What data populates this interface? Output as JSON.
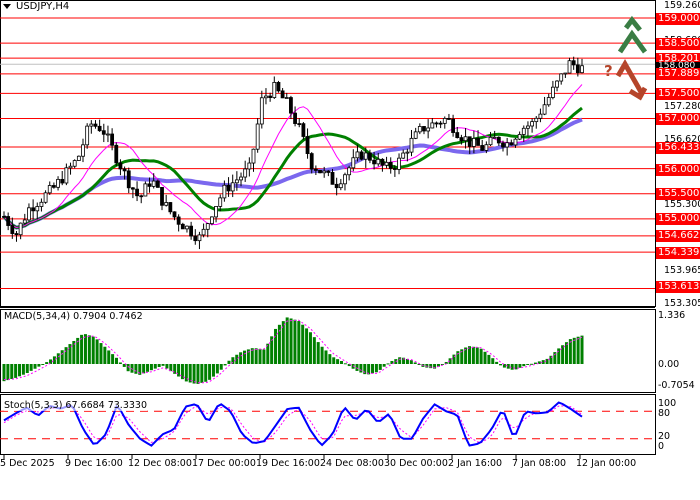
{
  "header": {
    "symbol": "USDJPY,H4"
  },
  "colors": {
    "level_line": "#ff0000",
    "candle_outline": "#000000",
    "ma_fast": "#ff00ff",
    "ma_mid": "#008000",
    "ma_slow": "#7b68ee",
    "macd_hist": "#008000",
    "macd_signal": "#ff00ff",
    "stoch_main": "#0000ff",
    "stoch_signal": "#ff00ff",
    "arrow_up": "#3a7d44",
    "arrow_down": "#b5452a"
  },
  "price_axis": {
    "ticks": [
      "159.260",
      "158.680",
      "157.280",
      "156.620",
      "155.300",
      "153.965",
      "153.305"
    ],
    "level_tags": [
      "159.000",
      "158.500",
      "158.201",
      "157.889",
      "157.500",
      "157.000",
      "156.433",
      "156.000",
      "155.500",
      "155.000",
      "154.662",
      "154.339",
      "153.613"
    ],
    "current_price": "158.080"
  },
  "macd": {
    "label": "MACD(5,34,4) 0.7904 0.7462",
    "axis": [
      "1.336",
      "0.00",
      "-0.7054"
    ]
  },
  "stoch": {
    "label": "Stoch(5,3,3) 67.6684 73.3330",
    "axis": [
      "100",
      "80",
      "20",
      "0"
    ]
  },
  "time_axis": {
    "labels": [
      "5 Dec 2025",
      "9 Dec 16:00",
      "12 Dec 08:00",
      "17 Dec 00:00",
      "19 Dec 16:00",
      "24 Dec 08:00",
      "30 Dec 00:00",
      "2 Jan 16:00",
      "7 Jan 08:00",
      "12 Jan 00:00"
    ]
  },
  "annotations": {
    "scenario_up": "up-arrow",
    "scenario_down": "down-arrow",
    "question_mark": "?"
  },
  "chart_data": [
    {
      "type": "candlestick",
      "title": "USDJPY,H4",
      "ylim": [
        153.305,
        159.26
      ],
      "x_labels": [
        "5 Dec 2025",
        "9 Dec 16:00",
        "12 Dec 08:00",
        "17 Dec 00:00",
        "19 Dec 16:00",
        "24 Dec 08:00",
        "30 Dec 00:00",
        "2 Jan 16:00",
        "7 Jan 08:00",
        "12 Jan 00:00"
      ],
      "horizontal_levels": [
        159.0,
        158.5,
        158.201,
        157.889,
        157.5,
        157.0,
        156.433,
        156.0,
        155.5,
        155.0,
        154.662,
        154.339,
        153.613
      ],
      "current_price": 158.08,
      "close_series_approx": [
        155.05,
        154.7,
        155.2,
        155.4,
        155.6,
        155.9,
        156.2,
        156.9,
        156.8,
        156.3,
        155.8,
        155.4,
        155.8,
        155.3,
        155.0,
        154.8,
        154.6,
        155.2,
        155.6,
        155.8,
        156.0,
        157.4,
        157.6,
        157.3,
        156.8,
        156.1,
        155.9,
        155.7,
        156.0,
        156.3,
        156.2,
        156.0,
        156.1,
        156.5,
        156.8,
        156.9,
        157.0,
        156.7,
        156.5,
        156.4,
        156.6,
        156.5,
        156.8,
        156.9,
        157.3,
        157.7,
        158.1,
        158.0
      ],
      "moving_averages": [
        {
          "name": "fast",
          "color": "#ff00ff"
        },
        {
          "name": "mid",
          "color": "#008000"
        },
        {
          "name": "slow",
          "color": "#7b68ee"
        }
      ]
    },
    {
      "type": "bar",
      "title": "MACD(5,34,4) 0.7904 0.7462",
      "ylim": [
        -0.7054,
        1.336
      ],
      "series": [
        {
          "name": "histogram",
          "values": [
            -0.55,
            -0.45,
            -0.3,
            -0.1,
            0.1,
            0.35,
            0.6,
            0.85,
            0.75,
            0.45,
            0.15,
            -0.25,
            -0.35,
            -0.2,
            -0.05,
            -0.3,
            -0.55,
            -0.65,
            -0.55,
            -0.25,
            0.15,
            0.35,
            0.45,
            0.4,
            1.0,
            1.3,
            1.2,
            0.9,
            0.5,
            0.2,
            0.05,
            -0.2,
            -0.35,
            -0.25,
            0.05,
            0.2,
            0.1,
            -0.1,
            -0.15,
            0.05,
            0.35,
            0.5,
            0.45,
            0.2,
            -0.1,
            -0.2,
            -0.05,
            0.05,
            0.15,
            0.45,
            0.7,
            0.79
          ]
        },
        {
          "name": "signal",
          "values": [
            -0.5,
            -0.48,
            -0.38,
            -0.2,
            0.0,
            0.25,
            0.5,
            0.75,
            0.78,
            0.55,
            0.25,
            -0.1,
            -0.3,
            -0.25,
            -0.12,
            -0.25,
            -0.45,
            -0.6,
            -0.6,
            -0.35,
            0.0,
            0.25,
            0.4,
            0.42,
            0.8,
            1.2,
            1.22,
            1.0,
            0.65,
            0.3,
            0.1,
            -0.1,
            -0.3,
            -0.3,
            -0.05,
            0.15,
            0.12,
            -0.05,
            -0.12,
            0.0,
            0.28,
            0.45,
            0.47,
            0.28,
            0.0,
            -0.15,
            -0.1,
            0.0,
            0.1,
            0.38,
            0.62,
            0.7462
          ]
        }
      ]
    },
    {
      "type": "line",
      "title": "Stoch(5,3,3) 67.6684 73.3330",
      "ylim": [
        0,
        100
      ],
      "levels": [
        20,
        80
      ],
      "series": [
        {
          "name": "%K",
          "values": [
            60,
            75,
            88,
            70,
            92,
            85,
            95,
            40,
            5,
            30,
            95,
            50,
            20,
            5,
            30,
            40,
            90,
            96,
            55,
            98,
            80,
            30,
            10,
            15,
            50,
            85,
            88,
            40,
            5,
            30,
            90,
            60,
            85,
            55,
            75,
            20,
            20,
            65,
            95,
            80,
            72,
            5,
            10,
            40,
            85,
            20,
            80,
            75,
            78,
            100,
            85,
            68
          ]
        },
        {
          "name": "%D",
          "values": [
            55,
            70,
            82,
            78,
            85,
            88,
            90,
            60,
            20,
            20,
            75,
            65,
            35,
            12,
            20,
            35,
            75,
            92,
            72,
            88,
            88,
            50,
            20,
            12,
            35,
            70,
            85,
            60,
            20,
            20,
            70,
            70,
            80,
            65,
            70,
            40,
            22,
            50,
            85,
            88,
            78,
            25,
            10,
            25,
            70,
            40,
            65,
            78,
            76,
            92,
            90,
            73
          ]
        }
      ]
    }
  ]
}
